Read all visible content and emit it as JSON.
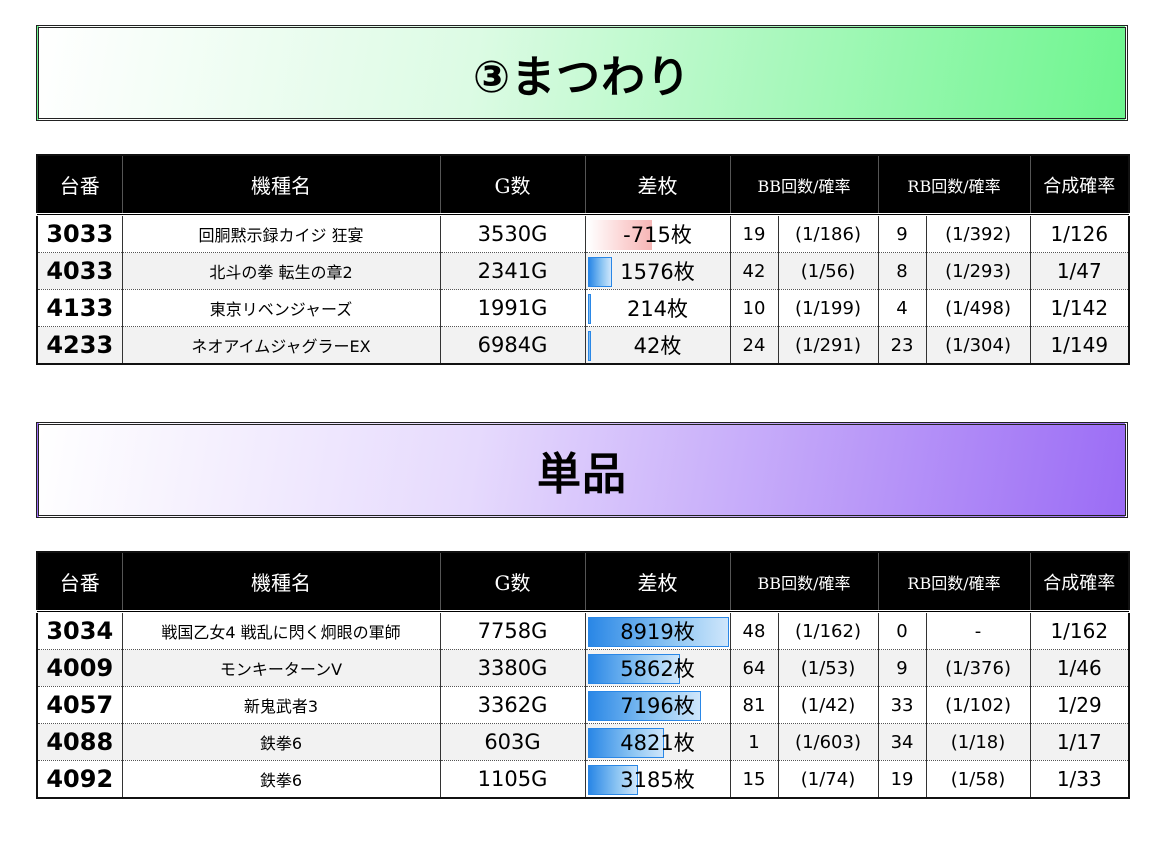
{
  "sections": [
    {
      "title": "③まつわり",
      "rows": [
        {
          "dai": "3033",
          "machine": "回胴黙示録カイジ 狂宴",
          "games": "3530G",
          "diff": "-715枚",
          "diff_value": -715,
          "bb_count": "19",
          "bb_prob": "(1/186)",
          "rb_count": "9",
          "rb_prob": "(1/392)",
          "total": "1/126"
        },
        {
          "dai": "4033",
          "machine": "北斗の拳 転生の章2",
          "games": "2341G",
          "diff": "1576枚",
          "diff_value": 1576,
          "bb_count": "42",
          "bb_prob": "(1/56)",
          "rb_count": "8",
          "rb_prob": "(1/293)",
          "total": "1/47"
        },
        {
          "dai": "4133",
          "machine": "東京リベンジャーズ",
          "games": "1991G",
          "diff": "214枚",
          "diff_value": 214,
          "bb_count": "10",
          "bb_prob": "(1/199)",
          "rb_count": "4",
          "rb_prob": "(1/498)",
          "total": "1/142"
        },
        {
          "dai": "4233",
          "machine": "ネオアイムジャグラーEX",
          "games": "6984G",
          "diff": "42枚",
          "diff_value": 42,
          "bb_count": "24",
          "bb_prob": "(1/291)",
          "rb_count": "23",
          "rb_prob": "(1/304)",
          "total": "1/149"
        }
      ]
    },
    {
      "title": "単品",
      "rows": [
        {
          "dai": "3034",
          "machine": "戦国乙女4 戦乱に閃く炯眼の軍師",
          "games": "7758G",
          "diff": "8919枚",
          "diff_value": 8919,
          "bb_count": "48",
          "bb_prob": "(1/162)",
          "rb_count": "0",
          "rb_prob": "-",
          "total": "1/162"
        },
        {
          "dai": "4009",
          "machine": "モンキーターンV",
          "games": "3380G",
          "diff": "5862枚",
          "diff_value": 5862,
          "bb_count": "64",
          "bb_prob": "(1/53)",
          "rb_count": "9",
          "rb_prob": "(1/376)",
          "total": "1/46"
        },
        {
          "dai": "4057",
          "machine": "新鬼武者3",
          "games": "3362G",
          "diff": "7196枚",
          "diff_value": 7196,
          "bb_count": "81",
          "bb_prob": "(1/42)",
          "rb_count": "33",
          "rb_prob": "(1/102)",
          "total": "1/29"
        },
        {
          "dai": "4088",
          "machine": "鉄拳6",
          "games": "603G",
          "diff": "4821枚",
          "diff_value": 4821,
          "bb_count": "1",
          "bb_prob": "(1/603)",
          "rb_count": "34",
          "rb_prob": "(1/18)",
          "total": "1/17"
        },
        {
          "dai": "4092",
          "machine": "鉄拳6",
          "games": "1105G",
          "diff": "3185枚",
          "diff_value": 3185,
          "bb_count": "15",
          "bb_prob": "(1/74)",
          "rb_count": "19",
          "rb_prob": "(1/58)",
          "total": "1/33"
        }
      ]
    }
  ],
  "headers": {
    "dai": "台番",
    "machine": "機種名",
    "games": "G数",
    "diff": "差枚",
    "bb": "BB回数/確率",
    "rb": "RB回数/確率",
    "total": "合成確率"
  },
  "scale": {
    "positive_full": 8919,
    "negative_full": 1200
  },
  "colors": {
    "positive_bar": "#2a87e6",
    "negative_bar": "#f6b5b5",
    "banner1_accent": "#6ef58f",
    "banner2_accent": "#9b6cf5"
  }
}
